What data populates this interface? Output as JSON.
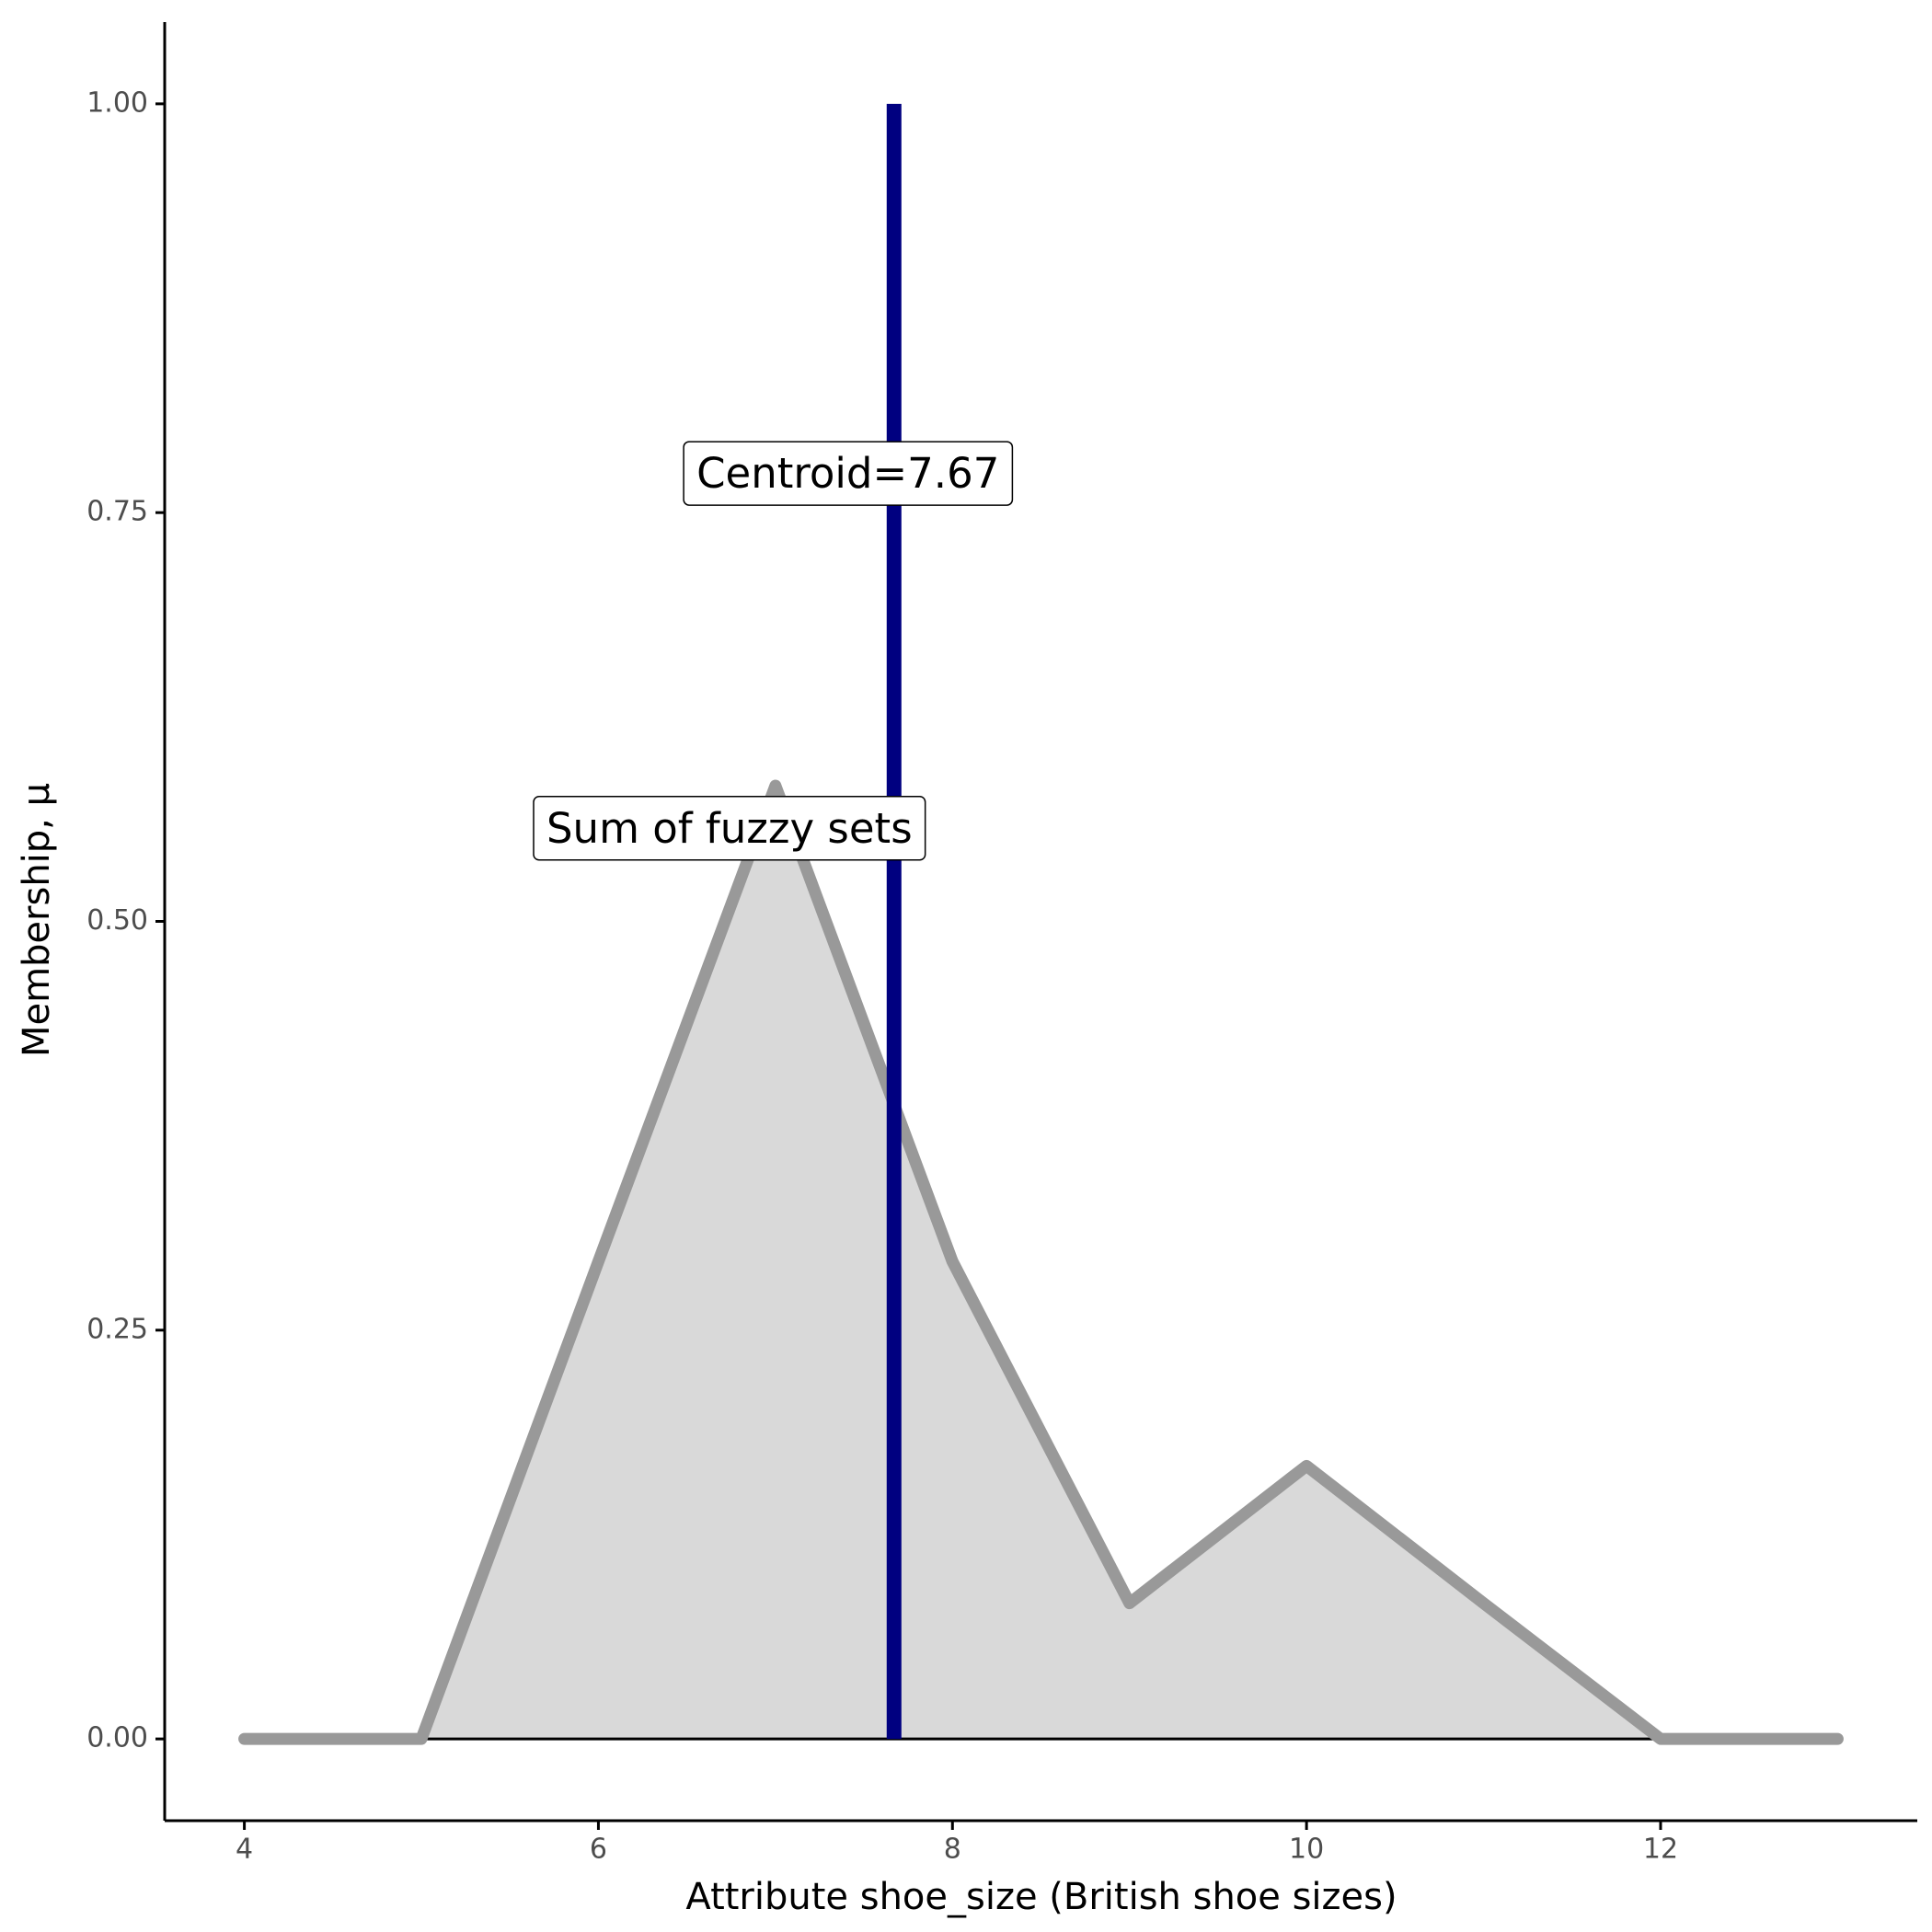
{
  "chart_data": {
    "type": "area",
    "x_label": "Attribute shoe_size (British shoe sizes)",
    "y_label": "Membership, μ",
    "x": [
      4,
      5,
      6,
      7,
      8,
      9,
      10,
      11,
      12,
      13
    ],
    "series": [
      {
        "name": "Sum of fuzzy sets",
        "color": "#999999",
        "fill": "#d9d9d9",
        "values": [
          0,
          0,
          0.292,
          0.583,
          0.292,
          0.083,
          0.167,
          0.083,
          0,
          0
        ]
      }
    ],
    "centroid": {
      "label": "Centroid=7.67",
      "x": 7.67,
      "ymax": 1,
      "color": "#000080"
    },
    "xlim": [
      3.55,
      13.45
    ],
    "ylim": [
      -0.05,
      1.05
    ],
    "xticks": [
      4,
      6,
      8,
      10,
      12
    ],
    "yticks": [
      {
        "value": 0,
        "label": "0.00"
      },
      {
        "value": 0.25,
        "label": "0.25"
      },
      {
        "value": 0.5,
        "label": "0.50"
      },
      {
        "value": 0.75,
        "label": "0.75"
      },
      {
        "value": 1,
        "label": "1.00"
      }
    ]
  }
}
